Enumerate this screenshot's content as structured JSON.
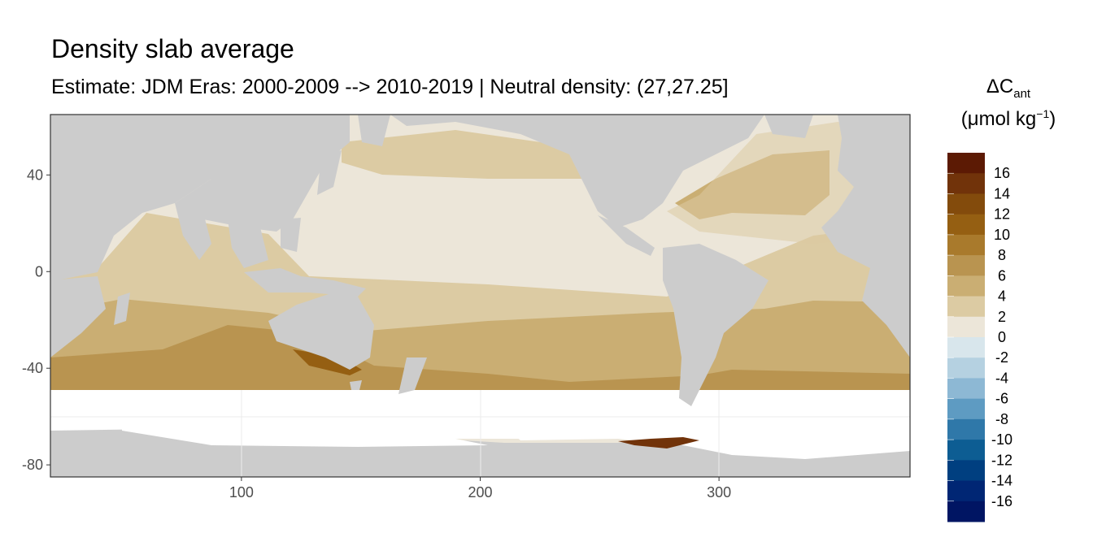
{
  "title": "Density slab average",
  "subtitle": "Estimate: JDM Eras: 2000-2009 --> 2010-2019 | Neutral density: (27,27.25]",
  "legend": {
    "title_symbol": "ΔC",
    "title_subscript": "ant",
    "unit_prefix": "(μmol kg",
    "unit_superscript": "−1",
    "unit_suffix": ")",
    "labels": [
      "16",
      "14",
      "12",
      "10",
      "8",
      "6",
      "4",
      "2",
      "0",
      "-2",
      "-4",
      "-6",
      "-8",
      "-10",
      "-12",
      "-14",
      "-16"
    ],
    "colors": [
      "#5c1a04",
      "#71330a",
      "#834b0c",
      "#955f12",
      "#a97a2c",
      "#b99450",
      "#caae73",
      "#dccba3",
      "#ece6d9",
      "#d8e6ec",
      "#b5d1e1",
      "#8db8d4",
      "#5e9bc2",
      "#2f78a9",
      "#0d5d93",
      "#003f80",
      "#002674",
      "#001563"
    ]
  },
  "colors": {
    "land": "#cccccc",
    "no_data": "#ffffff",
    "panel_border": "#333333",
    "grid": "#ebebeb"
  },
  "axes": {
    "x_ticks": [
      "100",
      "200",
      "300"
    ],
    "y_ticks": [
      "40",
      "0",
      "-40",
      "-80"
    ]
  },
  "map_data": {
    "type": "raster-map",
    "x_range": [
      20,
      380
    ],
    "y_range": [
      -85,
      65
    ],
    "x_tick_values": [
      100,
      200,
      300
    ],
    "y_tick_values": [
      40,
      0,
      -40,
      -80
    ]
  }
}
